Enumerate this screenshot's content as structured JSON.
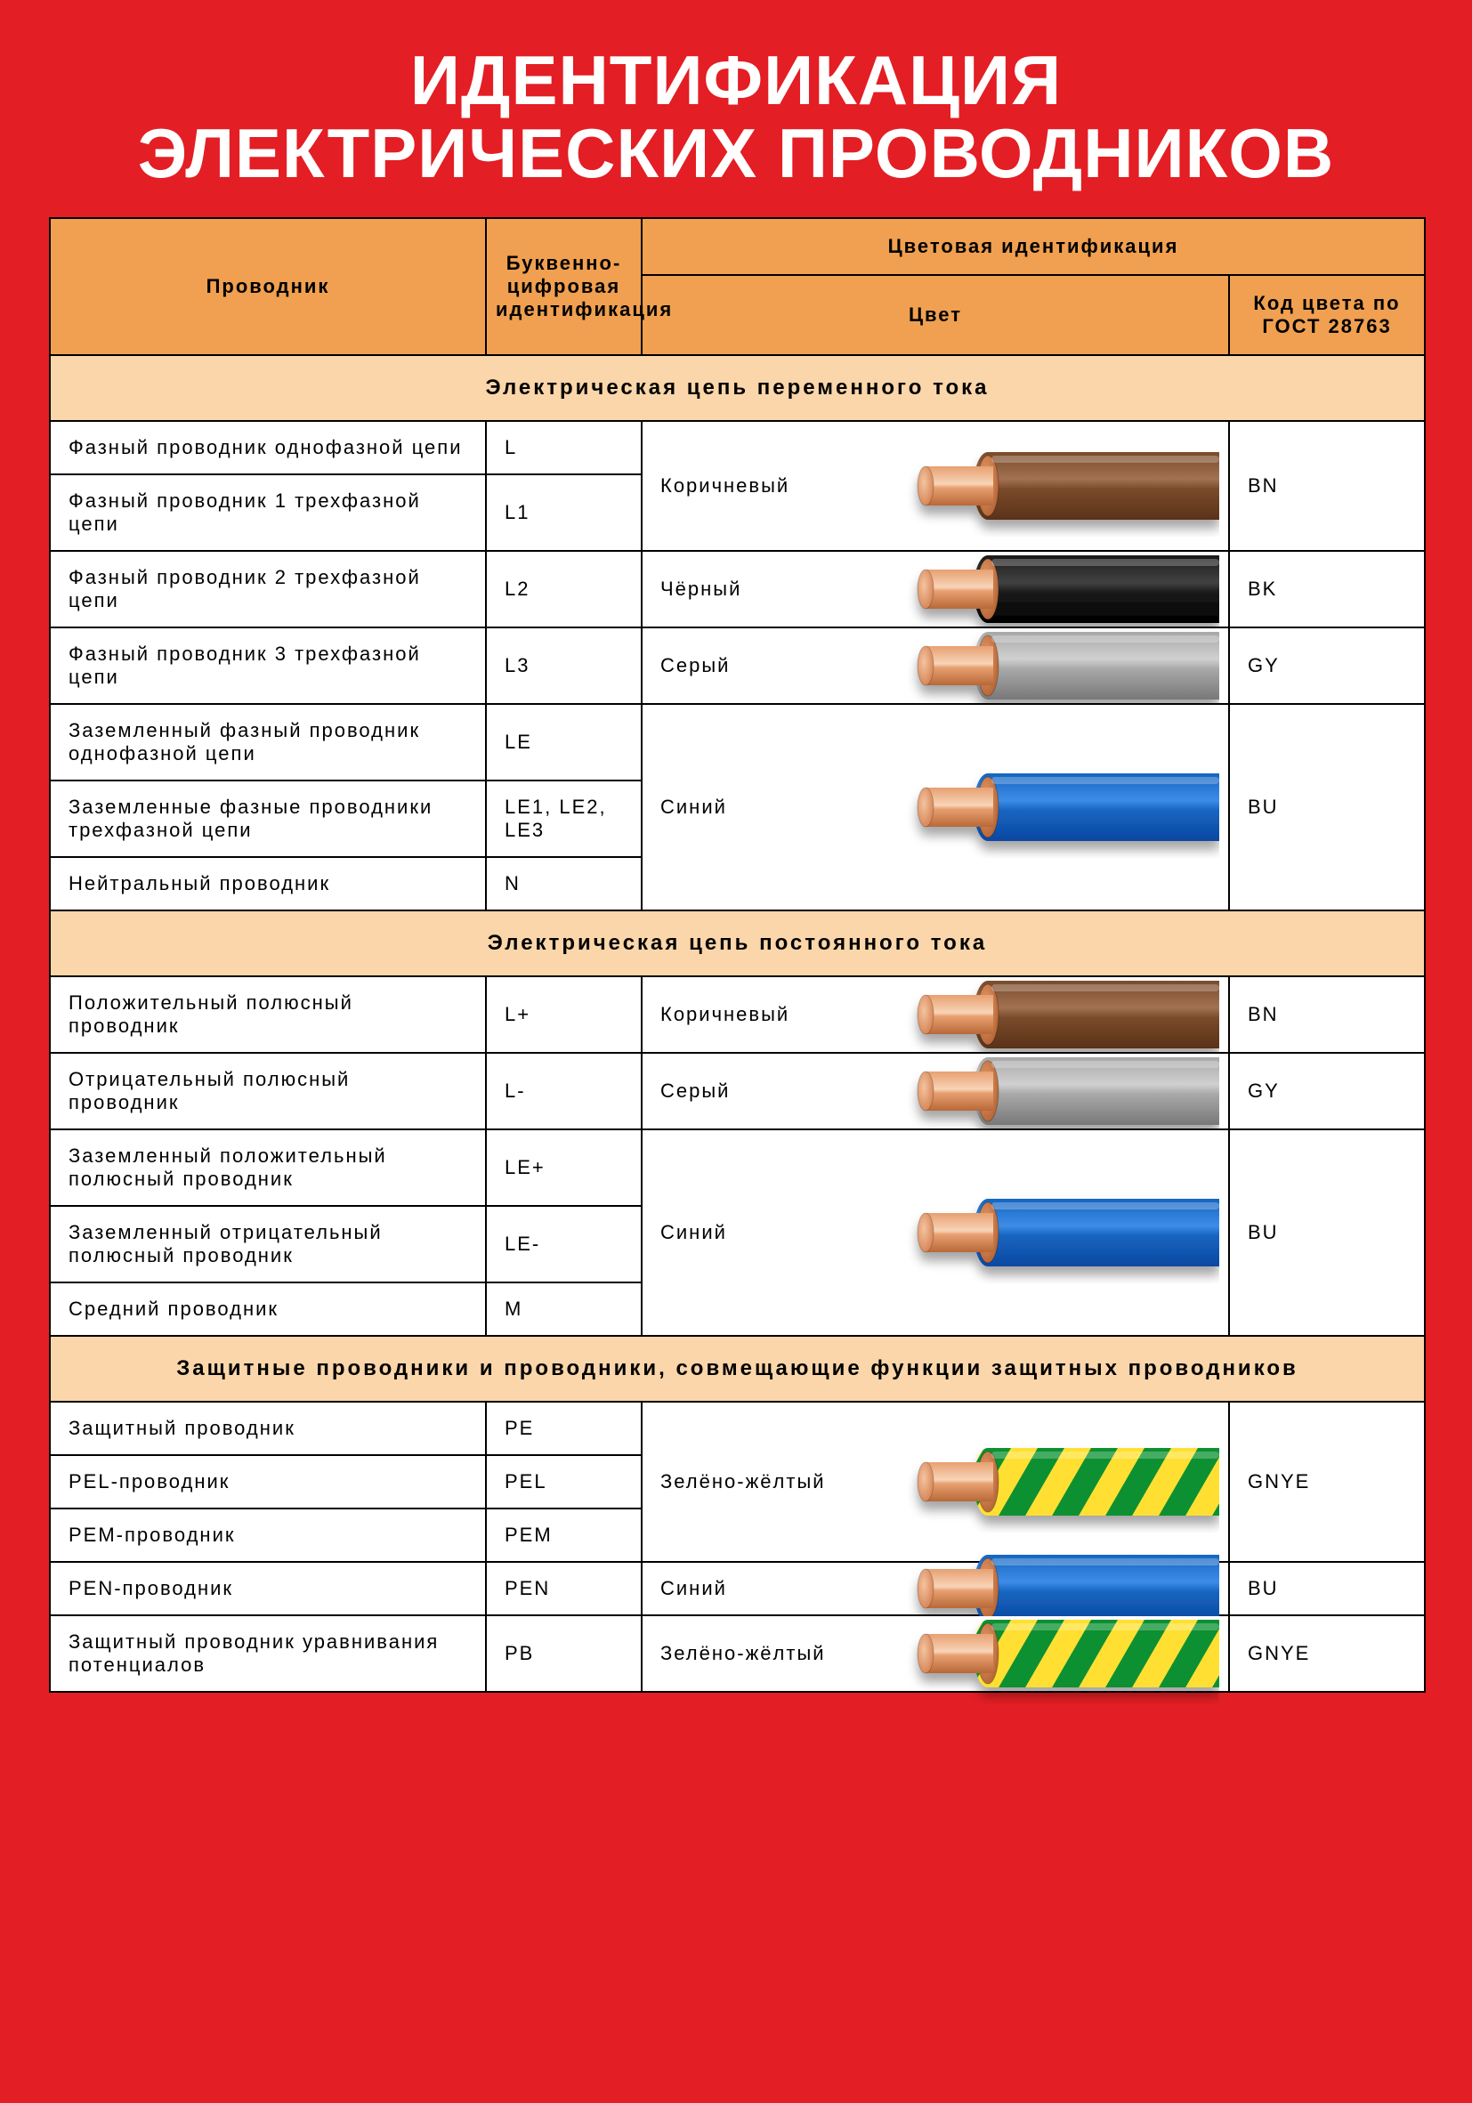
{
  "colors": {
    "poster_bg": "#e31e24",
    "header_bg": "#f0a050",
    "section_bg": "#fad6aa",
    "row_bg": "#ffffff",
    "border": "#000000",
    "title_text": "#ffffff",
    "copper_light": "#e8a070",
    "copper_dark": "#b86838",
    "copper_core_light": "#f4c4a0",
    "copper_core_dark": "#d8885a"
  },
  "typography": {
    "title_fontsize": 78,
    "header_fontsize": 22,
    "section_fontsize": 24,
    "cell_fontsize": 22
  },
  "title": {
    "line1": "ИДЕНТИФИКАЦИЯ",
    "line2": "ЭЛЕКТРИЧЕСКИХ ПРОВОДНИКОВ"
  },
  "headers": {
    "conductor": "Проводник",
    "alpha": "Буквенно-цифровая идентификация",
    "color_group": "Цветовая идентификация",
    "color": "Цвет",
    "code": "Код цвета по ГОСТ 28763"
  },
  "sections": [
    {
      "title": "Электрическая цепь переменного тока",
      "groups": [
        {
          "color_name": "Коричневый",
          "code": "BN",
          "wire": {
            "type": "solid",
            "insulation": "#7a4a2a",
            "insulation_dark": "#5a3218"
          },
          "rows": [
            {
              "conductor": "Фазный проводник однофазной цепи",
              "alpha": "L"
            },
            {
              "conductor": "Фазный проводник 1 трехфазной цепи",
              "alpha": "L1"
            }
          ]
        },
        {
          "color_name": "Чёрный",
          "code": "BK",
          "wire": {
            "type": "solid",
            "insulation": "#1a1a1a",
            "insulation_dark": "#000000"
          },
          "rows": [
            {
              "conductor": "Фазный проводник 2 трехфазной цепи",
              "alpha": "L2"
            }
          ]
        },
        {
          "color_name": "Серый",
          "code": "GY",
          "wire": {
            "type": "solid",
            "insulation": "#a8a8a8",
            "insulation_dark": "#787878"
          },
          "rows": [
            {
              "conductor": "Фазный проводник 3 трехфазной цепи",
              "alpha": "L3"
            }
          ]
        },
        {
          "color_name": "Синий",
          "code": "BU",
          "wire": {
            "type": "solid",
            "insulation": "#1565c0",
            "insulation_dark": "#0d47a1"
          },
          "rows": [
            {
              "conductor": "Заземленный фазный проводник однофазной цепи",
              "alpha": "LE"
            },
            {
              "conductor": "Заземленные фазные проводники трехфазной цепи",
              "alpha": "LE1, LE2, LE3"
            },
            {
              "conductor": "Нейтральный проводник",
              "alpha": "N"
            }
          ]
        }
      ]
    },
    {
      "title": "Электрическая цепь постоянного тока",
      "groups": [
        {
          "color_name": "Коричневый",
          "code": "BN",
          "wire": {
            "type": "solid",
            "insulation": "#7a4a2a",
            "insulation_dark": "#5a3218"
          },
          "rows": [
            {
              "conductor": "Положительный полюсный проводник",
              "alpha": "L+"
            }
          ]
        },
        {
          "color_name": "Серый",
          "code": "GY",
          "wire": {
            "type": "solid",
            "insulation": "#a8a8a8",
            "insulation_dark": "#787878"
          },
          "rows": [
            {
              "conductor": "Отрицательный полюсный проводник",
              "alpha": "L-"
            }
          ]
        },
        {
          "color_name": "Синий",
          "code": "BU",
          "wire": {
            "type": "solid",
            "insulation": "#1565c0",
            "insulation_dark": "#0d47a1"
          },
          "rows": [
            {
              "conductor": "Заземленный положительный полюсный проводник",
              "alpha": "LE+"
            },
            {
              "conductor": "Заземленный отрицательный полюсный проводник",
              "alpha": "LE-"
            },
            {
              "conductor": "Средний проводник",
              "alpha": "M"
            }
          ]
        }
      ]
    },
    {
      "title": "Защитные проводники и проводники, совмещающие функции защитных проводников",
      "groups": [
        {
          "color_name": "Зелёно-жёлтый",
          "code": "GNYE",
          "wire": {
            "type": "striped",
            "color1": "#0a9030",
            "color2": "#ffe030"
          },
          "rows": [
            {
              "conductor": "Защитный проводник",
              "alpha": "PE"
            },
            {
              "conductor": "PEL-проводник",
              "alpha": "PEL"
            },
            {
              "conductor": "PEM-проводник",
              "alpha": "PEM"
            }
          ]
        },
        {
          "color_name": "Синий",
          "code": "BU",
          "wire": {
            "type": "solid",
            "insulation": "#1565c0",
            "insulation_dark": "#0d47a1"
          },
          "rows": [
            {
              "conductor": "PEN-проводник",
              "alpha": "PEN"
            }
          ]
        },
        {
          "color_name": "Зелёно-жёлтый",
          "code": "GNYE",
          "wire": {
            "type": "striped",
            "color1": "#0a9030",
            "color2": "#ffe030"
          },
          "rows": [
            {
              "conductor": "Защитный проводник уравнивания потенциалов",
              "alpha": "PB"
            }
          ]
        }
      ]
    }
  ]
}
